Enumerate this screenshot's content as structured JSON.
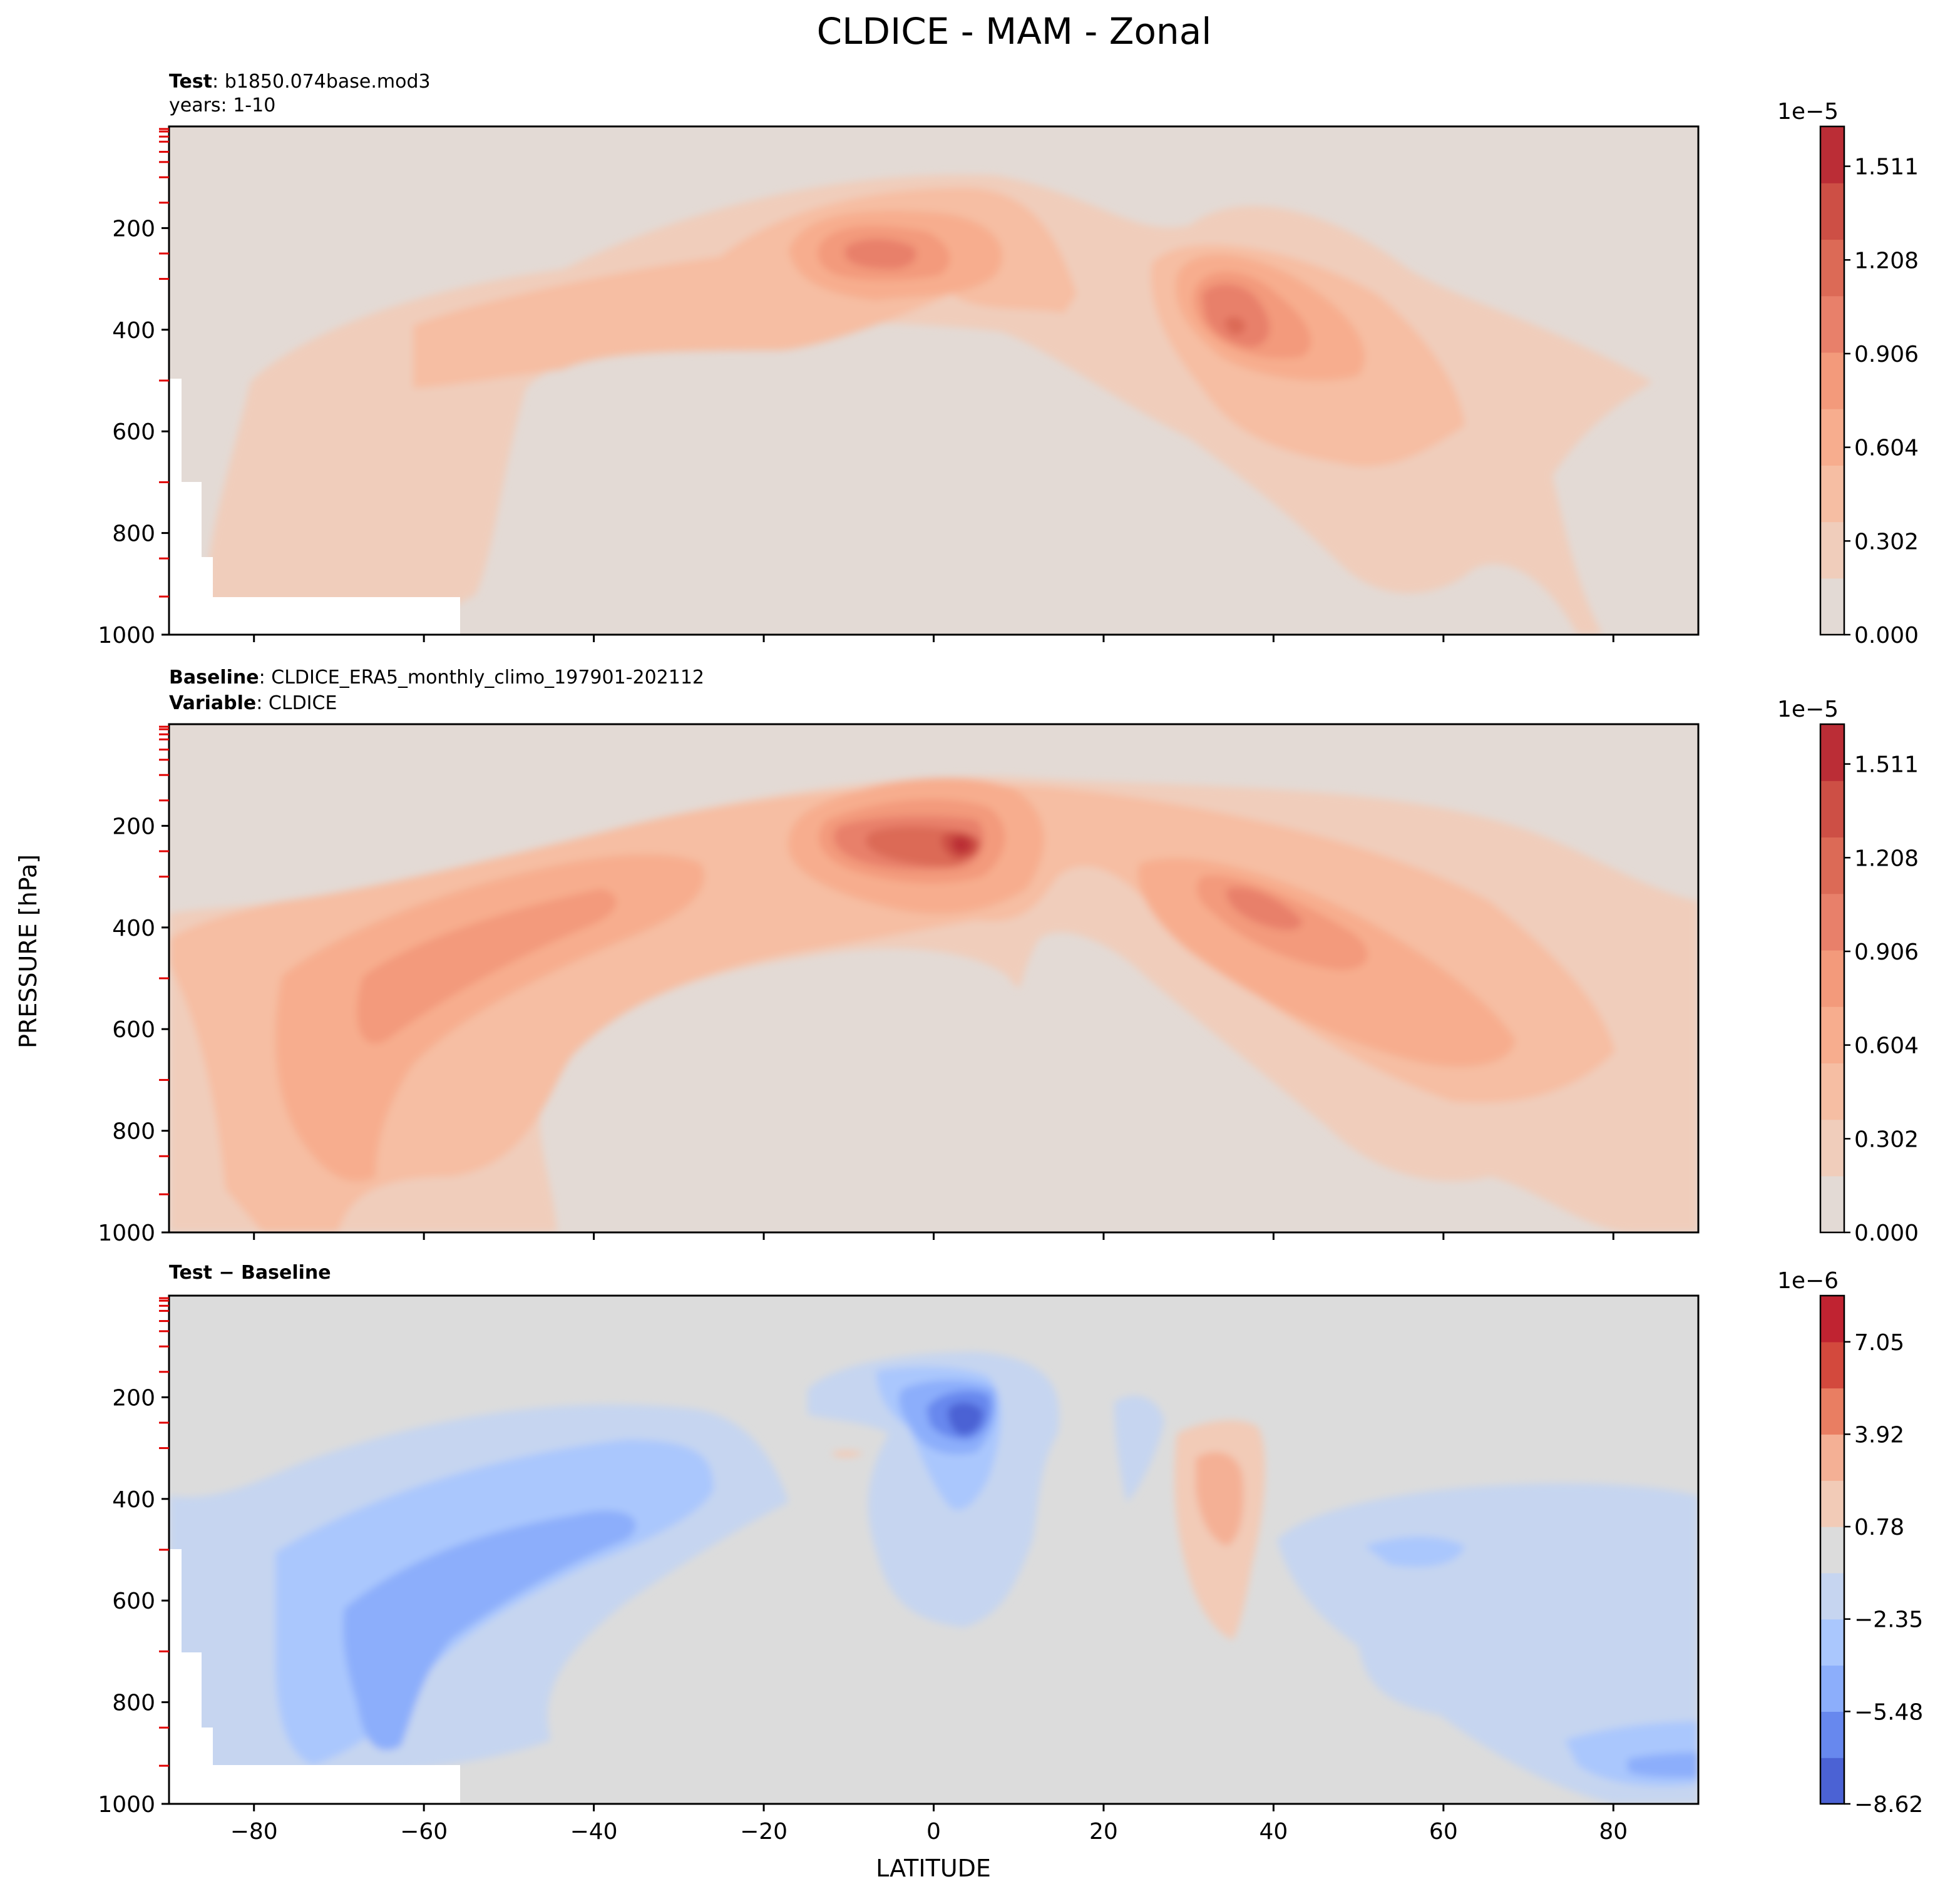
{
  "figure": {
    "title": "CLDICE - MAM - Zonal",
    "xlabel": "LATITUDE",
    "ylabel": "PRESSURE [hPa]"
  },
  "panels": [
    {
      "id": "test",
      "header_line1_bold": "Test",
      "header_line1_text": "b1850.074base.mod3",
      "header_line2_bold": "",
      "header_line2_text": "years: 1-10",
      "colorbar": {
        "scale_label": "1e−5",
        "ticks": [
          "1.511",
          "1.208",
          "0.906",
          "0.604",
          "0.302",
          "0.000"
        ]
      }
    },
    {
      "id": "baseline",
      "header_line1_bold": "Baseline",
      "header_line1_text": "CLDICE_ERA5_monthly_climo_197901-202112",
      "header_line2_bold": "Variable",
      "header_line2_text": "CLDICE",
      "colorbar": {
        "scale_label": "1e−5",
        "ticks": [
          "1.511",
          "1.208",
          "0.906",
          "0.604",
          "0.302",
          "0.000"
        ]
      }
    },
    {
      "id": "diff",
      "header_line1_bold": "Test − Baseline",
      "header_line1_text": "",
      "header_line2_bold": "",
      "header_line2_text": "",
      "colorbar": {
        "scale_label": "1e−6",
        "ticks": [
          "7.05",
          "3.92",
          "0.78",
          "−2.35",
          "−5.48",
          "−8.62"
        ]
      }
    }
  ],
  "chart_data": [
    {
      "type": "heatmap",
      "panel": "test",
      "x_range": [
        -90,
        90
      ],
      "y_range": [
        0,
        1000
      ],
      "y_inverted": true,
      "xticks": [
        "−80",
        "−60",
        "−40",
        "−20",
        "0",
        "20",
        "40",
        "60",
        "80"
      ],
      "yticks": [
        "200",
        "400",
        "600",
        "800",
        "1000"
      ],
      "contour_levels_units": "1e-5",
      "colorbar_colors": [
        "#e3dad5",
        "#f0cdbb",
        "#f6bea3",
        "#f7ad8e",
        "#f39a7b",
        "#e8806a",
        "#dc6a56",
        "#cd4f45",
        "#bb2d36"
      ],
      "approx_features": [
        {
          "lat": -2,
          "pressure": 250,
          "value": 0.9
        },
        {
          "lat": 36,
          "pressure": 380,
          "value": 1.1
        },
        {
          "lat": -50,
          "pressure": 450,
          "value": 0.3
        }
      ]
    },
    {
      "type": "heatmap",
      "panel": "baseline",
      "x_range": [
        -90,
        90
      ],
      "y_range": [
        0,
        1000
      ],
      "y_inverted": true,
      "xticks": [
        "−80",
        "−60",
        "−40",
        "−20",
        "0",
        "20",
        "40",
        "60",
        "80"
      ],
      "yticks": [
        "200",
        "400",
        "600",
        "800",
        "1000"
      ],
      "contour_levels_units": "1e-5",
      "colorbar_colors": [
        "#e3dad5",
        "#f0cdbb",
        "#f6bea3",
        "#f7ad8e",
        "#f39a7b",
        "#e8806a",
        "#dc6a56",
        "#cd4f45",
        "#bb2d36"
      ],
      "approx_features": [
        {
          "lat": 4,
          "pressure": 235,
          "value": 1.6
        },
        {
          "lat": -60,
          "pressure": 550,
          "value": 0.9
        },
        {
          "lat": 40,
          "pressure": 400,
          "value": 0.9
        }
      ]
    },
    {
      "type": "heatmap",
      "panel": "diff",
      "x_range": [
        -90,
        90
      ],
      "y_range": [
        0,
        1000
      ],
      "y_inverted": true,
      "xticks": [
        "−80",
        "−60",
        "−40",
        "−20",
        "0",
        "20",
        "40",
        "60",
        "80"
      ],
      "yticks": [
        "200",
        "400",
        "600",
        "800",
        "1000"
      ],
      "contour_levels_units": "1e-6",
      "colorbar_colors": [
        "#4b62d4",
        "#6788ee",
        "#8caefb",
        "#aac7fd",
        "#c6d5f0",
        "#dcdcdc",
        "#f2cbb7",
        "#f4b095",
        "#e97e62",
        "#d3493d",
        "#c02331"
      ],
      "approx_features": [
        {
          "lat": 4,
          "pressure": 230,
          "value": -8.0
        },
        {
          "lat": -60,
          "pressure": 600,
          "value": -5.0
        },
        {
          "lat": 32,
          "pressure": 400,
          "value": 2.5
        }
      ]
    }
  ]
}
